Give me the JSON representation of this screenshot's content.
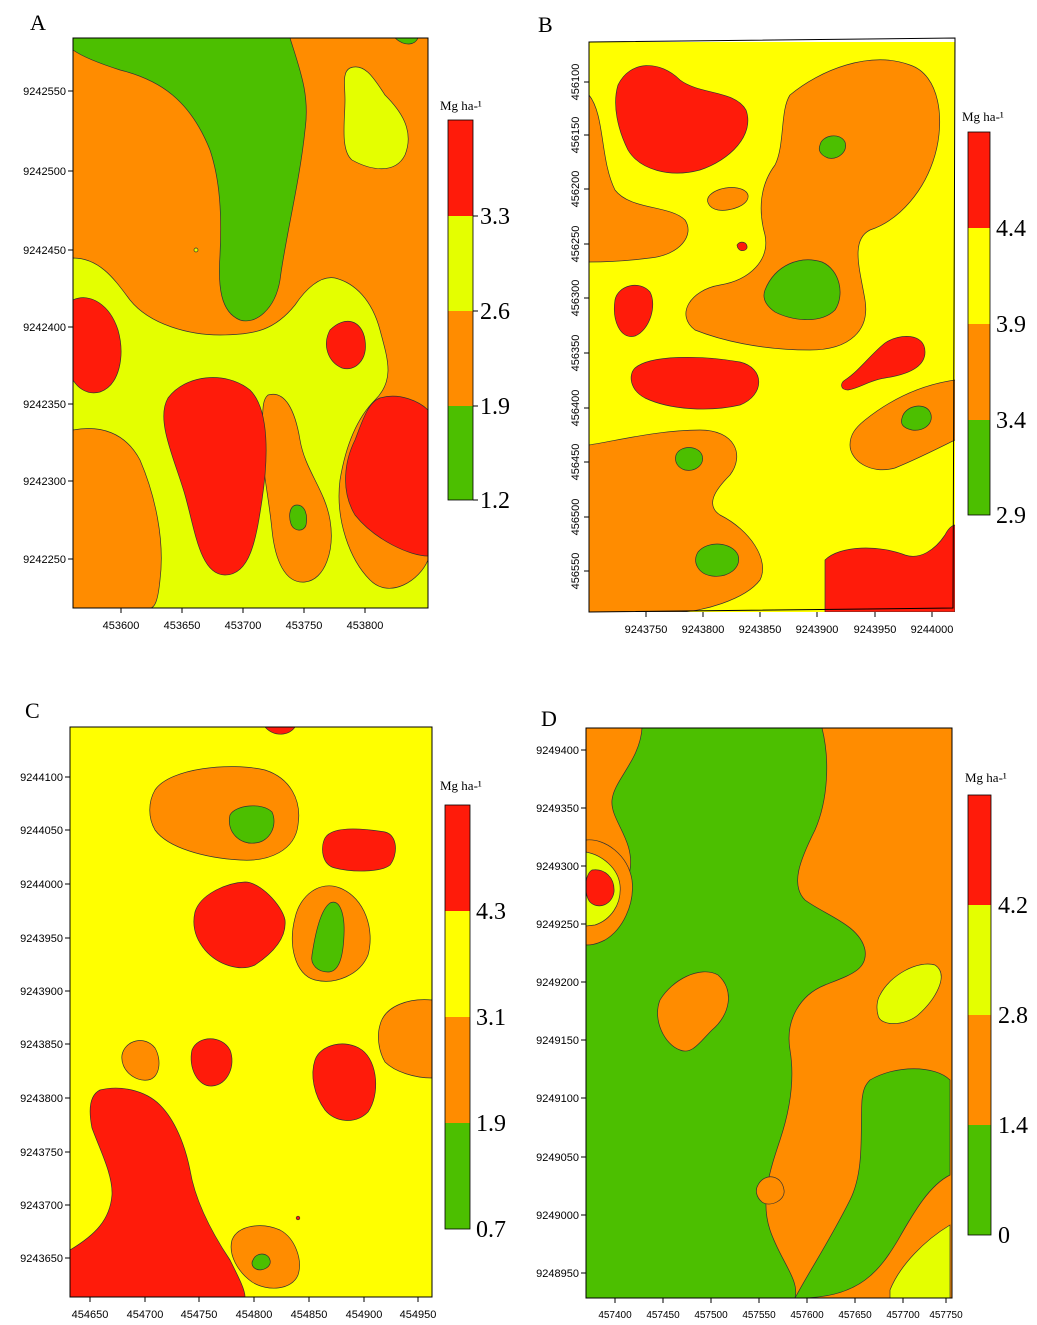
{
  "colors": {
    "red": "#ff1b0a",
    "yellow_A": "#e4ff00",
    "yellow": "#ffff00",
    "orange": "#ff8c00",
    "green": "#4cbf00"
  },
  "panels": [
    {
      "letter": "A",
      "unit": "Mg ha-¹",
      "legend_labels": [
        "3.3",
        "2.6",
        "1.9",
        "1.2"
      ],
      "x_ticks": [
        "453600",
        "453650",
        "453700",
        "453750",
        "453800"
      ],
      "y_ticks": [
        "9242550",
        "9242500",
        "9242450",
        "9242400",
        "9242350",
        "9242300",
        "9242250"
      ]
    },
    {
      "letter": "B",
      "unit": "Mg ha-¹",
      "legend_labels": [
        "4.4",
        "3.9",
        "3.4",
        "2.9"
      ],
      "x_ticks": [
        "9243750",
        "9243800",
        "9243850",
        "9243900",
        "9243950",
        "9244000"
      ],
      "y_ticks": [
        "456100",
        "456150",
        "456200",
        "456250",
        "456300",
        "456350",
        "456400",
        "456450",
        "456500",
        "456550"
      ]
    },
    {
      "letter": "C",
      "unit": "Mg ha-¹",
      "legend_labels": [
        "4.3",
        "3.1",
        "1.9",
        "0.7"
      ],
      "x_ticks": [
        "454650",
        "454700",
        "454750",
        "454800",
        "454850",
        "454900",
        "454950"
      ],
      "y_ticks": [
        "9244100",
        "9244050",
        "9244000",
        "9243950",
        "9243900",
        "9243850",
        "9243800",
        "9243750",
        "9243700",
        "9243650"
      ]
    },
    {
      "letter": "D",
      "unit": "Mg ha-¹",
      "legend_labels": [
        "4.2",
        "2.8",
        "1.4",
        "0"
      ],
      "x_ticks": [
        "457400",
        "457450",
        "457500",
        "457550",
        "457600",
        "457650",
        "457700",
        "457750"
      ],
      "y_ticks": [
        "9249400",
        "9249350",
        "9249300",
        "9249250",
        "9249200",
        "9249150",
        "9249100",
        "9249050",
        "9249000",
        "9248950"
      ]
    }
  ]
}
